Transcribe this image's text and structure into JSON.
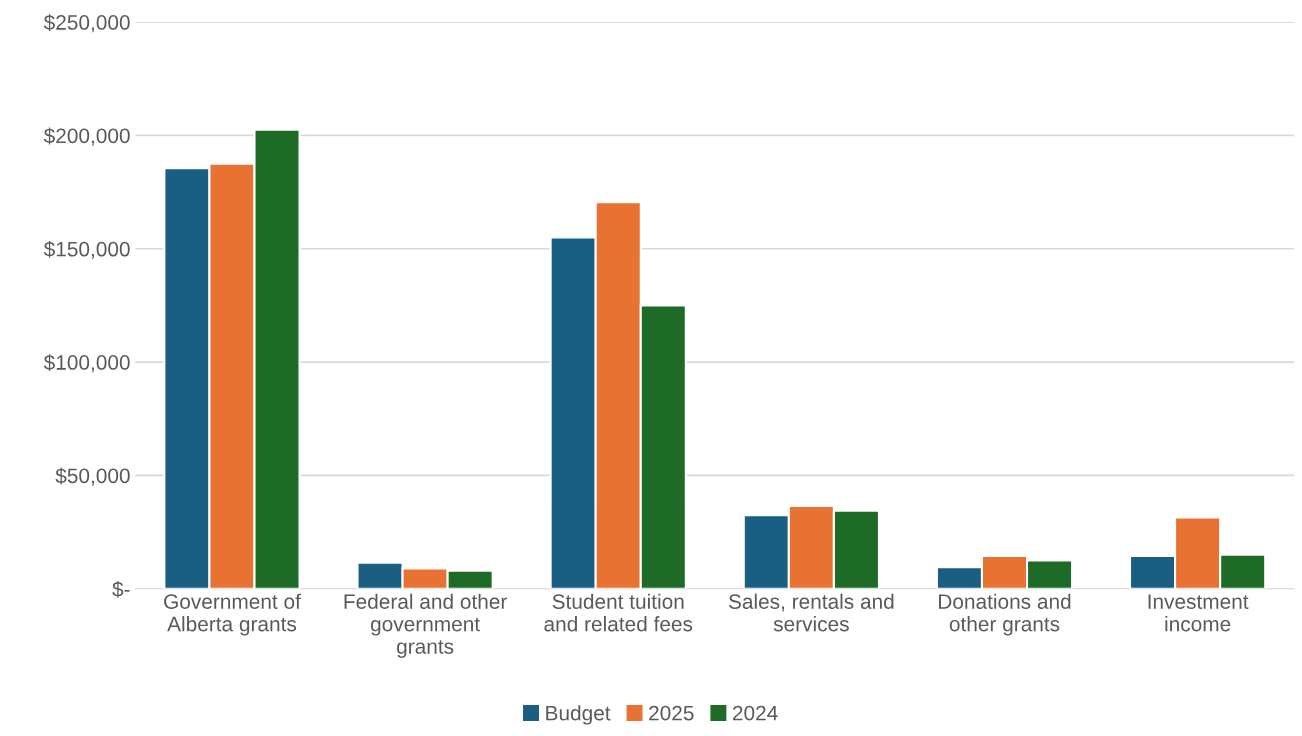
{
  "chart_data": {
    "type": "bar",
    "categories": [
      "Government of\nAlberta grants",
      "Federal and other\ngovernment\ngrants",
      "Student tuition\nand related fees",
      "Sales, rentals and\nservices",
      "Donations and\nother grants",
      "Investment\nincome"
    ],
    "series": [
      {
        "name": "Budget",
        "color": "#1a5f82",
        "values": [
          185500,
          11500,
          155000,
          32500,
          9500,
          14500
        ]
      },
      {
        "name": "2025",
        "color": "#e87232",
        "values": [
          187500,
          9000,
          170500,
          36500,
          14500,
          31500
        ]
      },
      {
        "name": "2024",
        "color": "#1d6b27",
        "values": [
          202500,
          8000,
          125000,
          34500,
          12500,
          15000
        ]
      }
    ],
    "ylim": [
      0,
      250000
    ],
    "yticks": [
      {
        "value": 0,
        "label": "$-"
      },
      {
        "value": 50000,
        "label": "$50,000"
      },
      {
        "value": 100000,
        "label": "$100,000"
      },
      {
        "value": 150000,
        "label": "$150,000"
      },
      {
        "value": 200000,
        "label": "$200,000"
      },
      {
        "value": 250000,
        "label": "$250,000"
      }
    ],
    "grid": "y",
    "legend": "bottom"
  }
}
